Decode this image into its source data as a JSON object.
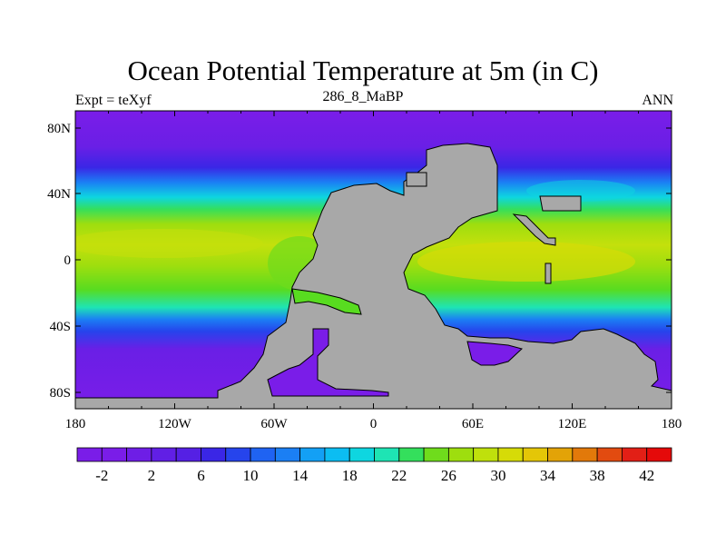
{
  "title": "Ocean Potential Temperature at 5m (in C)",
  "left_string": "Expt = teXyf",
  "center_string": "286_8_MaBP",
  "right_string": "ANN",
  "lon_ticks": [
    "180",
    "120W",
    "60W",
    "0",
    "60E",
    "120E",
    "180"
  ],
  "lat_ticks": [
    "80N",
    "40N",
    "0",
    "40S",
    "80S"
  ],
  "colorbar": {
    "colors": [
      "#7a1de8",
      "#7a1de8",
      "#6e1ee6",
      "#611fe5",
      "#5520e4",
      "#3a26e6",
      "#2644ec",
      "#1f63f2",
      "#1b7ff4",
      "#13a0f5",
      "#0cbdf2",
      "#0ed6e0",
      "#1ee4b4",
      "#34df5c",
      "#6fdc1c",
      "#9ede0e",
      "#bfe00c",
      "#d6db07",
      "#e4c607",
      "#e3a307",
      "#e2790a",
      "#e24b10",
      "#e21f16",
      "#e50a0a"
    ],
    "labels": [
      "-2",
      "2",
      "6",
      "10",
      "14",
      "18",
      "22",
      "26",
      "30",
      "34",
      "38",
      "42"
    ],
    "land_color": "#a8a8a8"
  }
}
